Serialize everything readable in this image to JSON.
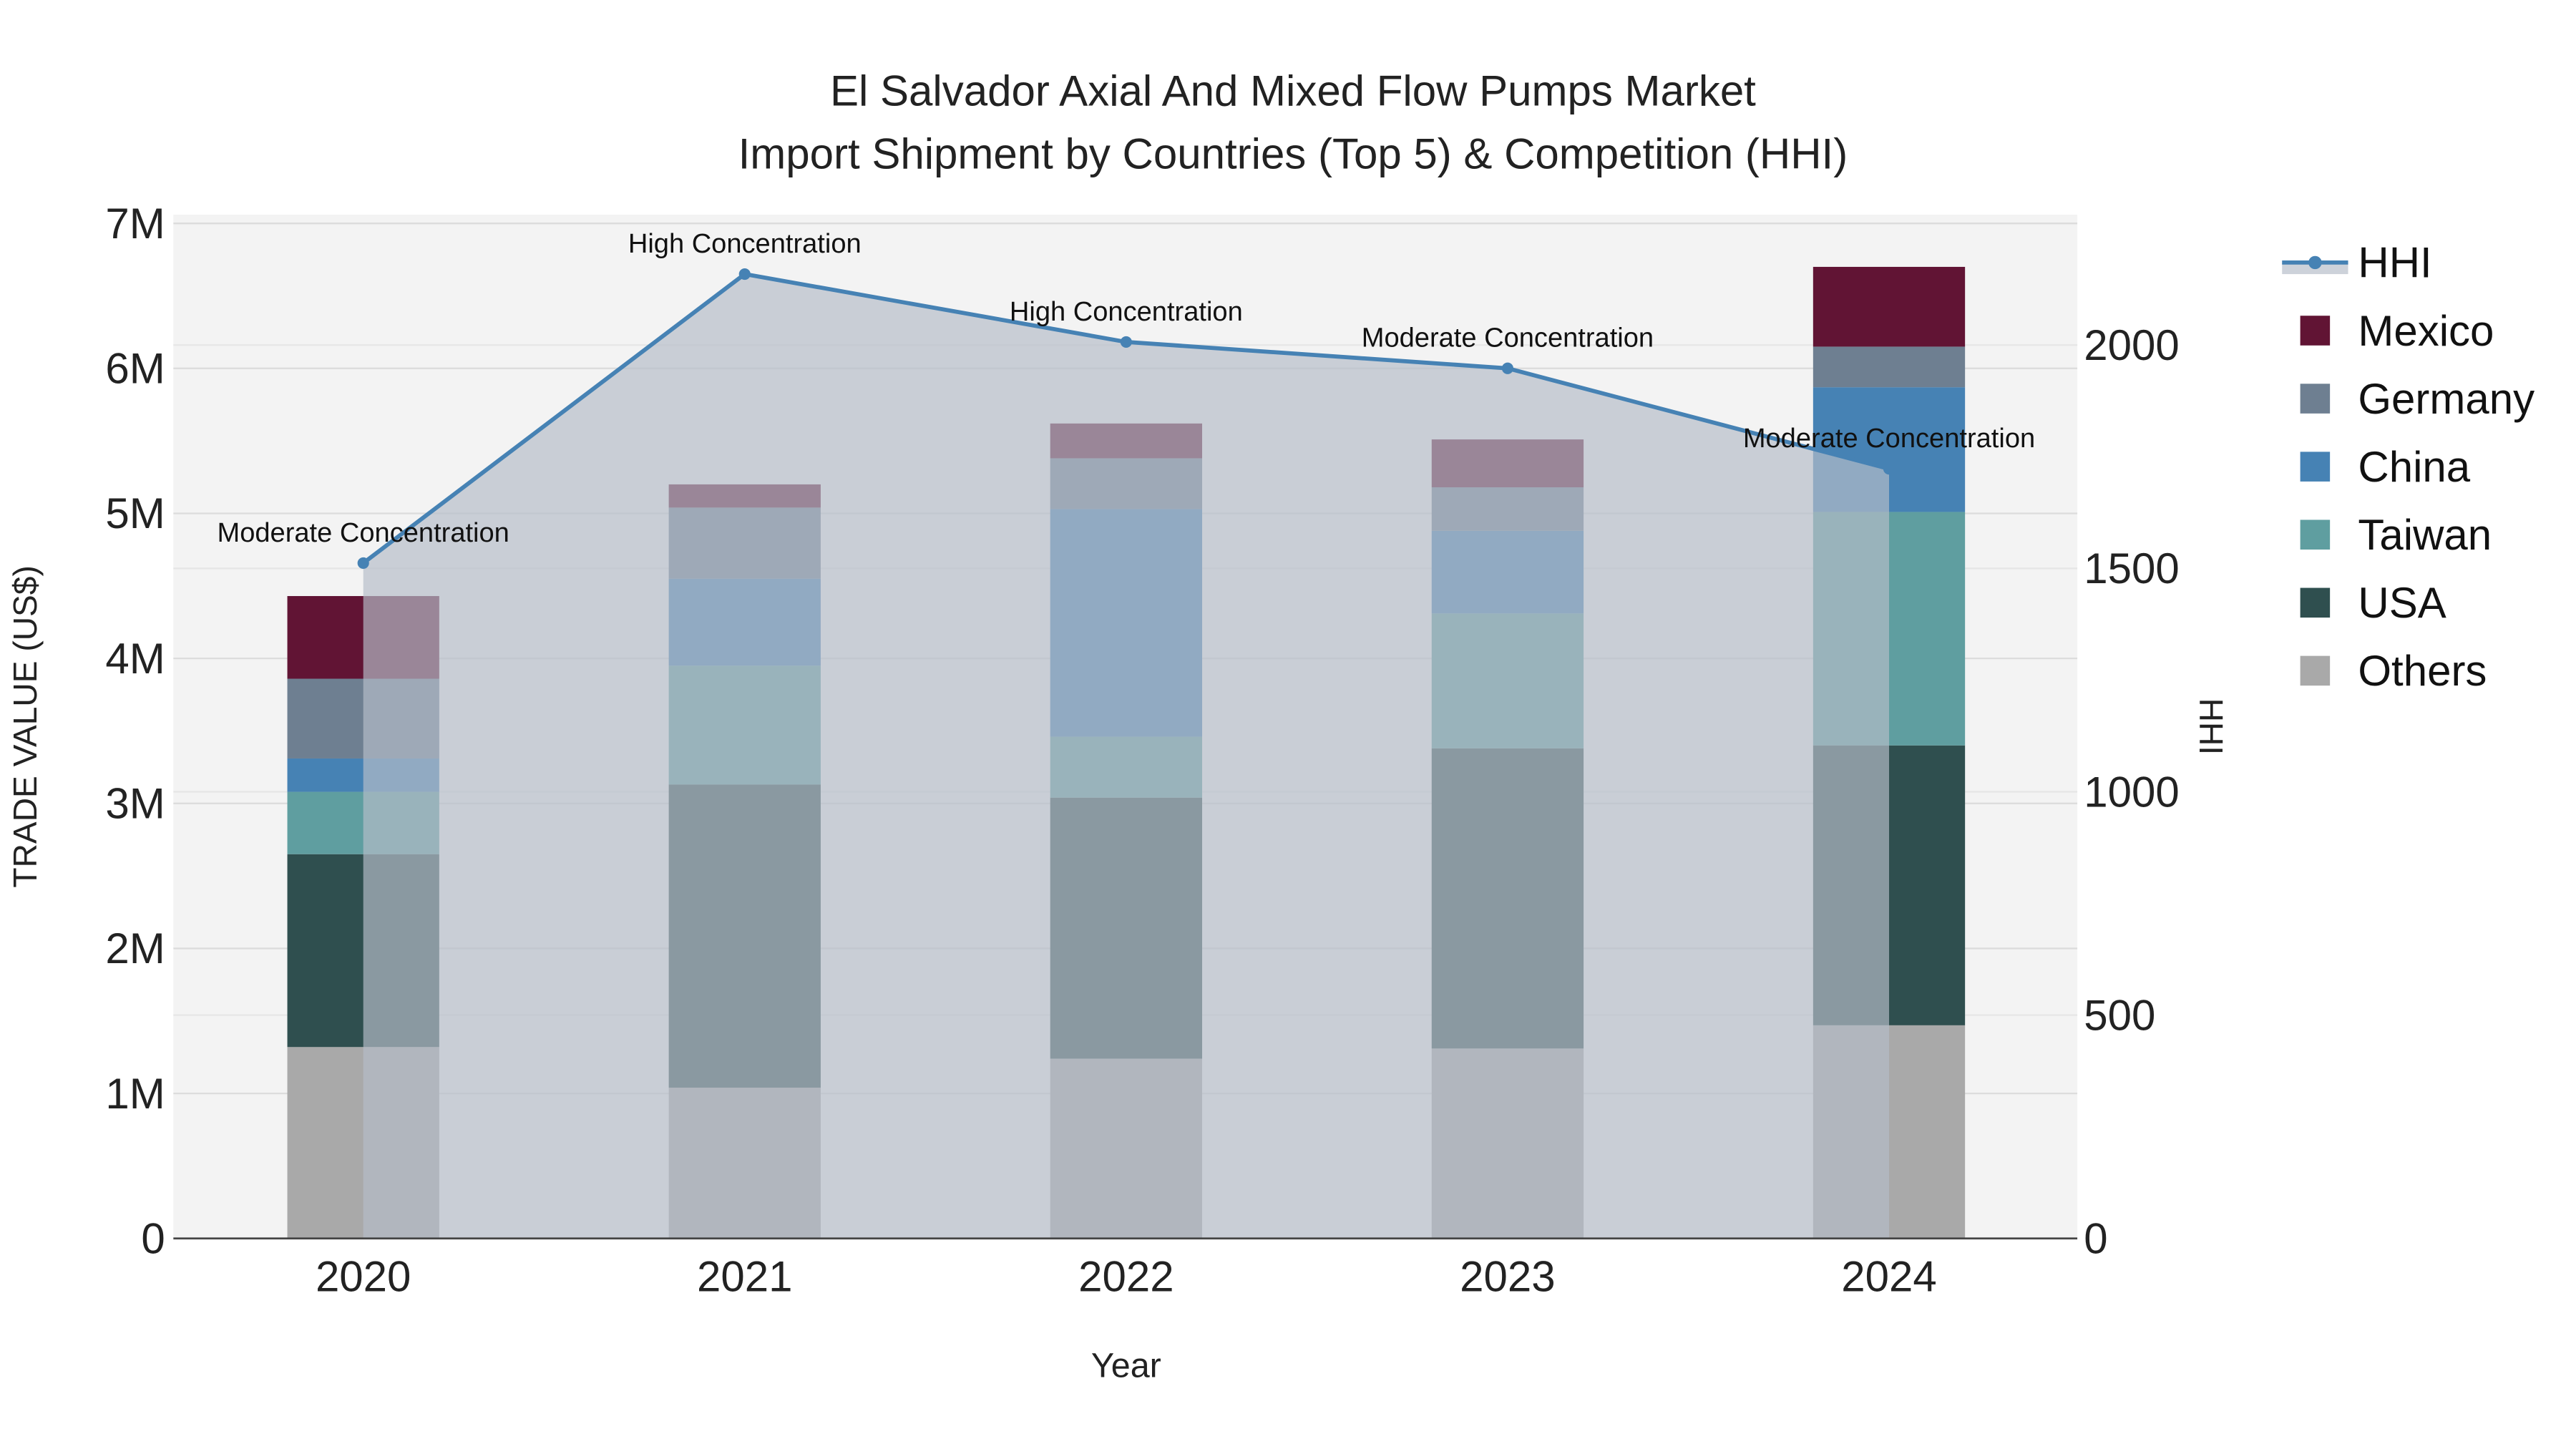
{
  "chart_data": {
    "type": "bar",
    "title": "El Salvador Axial And Mixed Flow Pumps Market",
    "subtitle": "Import Shipment by Countries (Top 5) & Competition (HHI)",
    "xlabel": "Year",
    "ylabel": "TRADE VALUE (US$)",
    "y2label": "HHI",
    "categories": [
      "2020",
      "2021",
      "2022",
      "2023",
      "2024"
    ],
    "ylim": [
      0,
      7060000
    ],
    "y2lim": [
      0,
      2292
    ],
    "yticks": [
      {
        "v": 0,
        "label": "0"
      },
      {
        "v": 1000000,
        "label": "1M"
      },
      {
        "v": 2000000,
        "label": "2M"
      },
      {
        "v": 3000000,
        "label": "3M"
      },
      {
        "v": 4000000,
        "label": "4M"
      },
      {
        "v": 5000000,
        "label": "5M"
      },
      {
        "v": 6000000,
        "label": "6M"
      },
      {
        "v": 7000000,
        "label": "7M"
      }
    ],
    "y2ticks": [
      {
        "v": 0,
        "label": "0"
      },
      {
        "v": 500,
        "label": "500"
      },
      {
        "v": 1000,
        "label": "1000"
      },
      {
        "v": 1500,
        "label": "1500"
      },
      {
        "v": 2000,
        "label": "2000"
      }
    ],
    "stacked": true,
    "series": [
      {
        "name": "Others",
        "color": "#a9a9a9",
        "values": [
          1320000,
          1040000,
          1240000,
          1310000,
          1470000
        ]
      },
      {
        "name": "USA",
        "color": "#2f4f4f",
        "values": [
          1330000,
          2090000,
          1800000,
          2070000,
          1930000
        ]
      },
      {
        "name": "Taiwan",
        "color": "#5f9ea0",
        "values": [
          430000,
          820000,
          420000,
          930000,
          1610000
        ]
      },
      {
        "name": "China",
        "color": "#4682b4",
        "values": [
          230000,
          600000,
          1570000,
          570000,
          860000
        ]
      },
      {
        "name": "Germany",
        "color": "#6e7f91",
        "values": [
          550000,
          490000,
          350000,
          300000,
          280000
        ]
      },
      {
        "name": "Mexico",
        "color": "#611434",
        "values": [
          570000,
          160000,
          240000,
          330000,
          550000
        ]
      }
    ],
    "hhi": {
      "name": "HHI",
      "color": "#4682b4",
      "values": [
        1512,
        2159,
        2007,
        1948,
        1723
      ],
      "annotations": [
        "Moderate Concentration",
        "High Concentration",
        "High Concentration",
        "Moderate Concentration",
        "Moderate Concentration"
      ]
    },
    "legend": [
      "HHI",
      "Mexico",
      "Germany",
      "China",
      "Taiwan",
      "USA",
      "Others"
    ],
    "legend_position": "right",
    "grid": true
  }
}
